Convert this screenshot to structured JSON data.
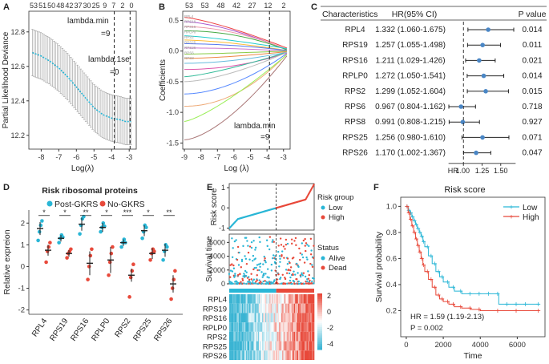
{
  "colors": {
    "cyan": "#29b6d6",
    "red": "#e8493a",
    "dot_blue": "#4a86c5",
    "grid_gray": "#9a9a9a",
    "heat_blue": "#3ab4d3",
    "heat_red": "#e8493a"
  },
  "chart_data": [
    {
      "panel": "A",
      "type": "line",
      "top_ticks": [
        "53",
        "51",
        "50",
        "48",
        "42",
        "37",
        "30",
        "25",
        "9",
        "7",
        "2",
        "0"
      ],
      "xticks": [
        "-8",
        "-7",
        "-6",
        "-5",
        "-4",
        "-3"
      ],
      "xlim": [
        -8.7,
        -2.6
      ],
      "yticks": [
        "12.2",
        "12.4",
        "12.6",
        "12.8"
      ],
      "ylim": [
        12.12,
        12.92
      ],
      "xlabel": "Log(λ)",
      "ylabel": "Partial Likelihood Deviance",
      "lambda_min_x": -3.85,
      "lambda_1se_x": -2.95,
      "annot_min": "lambda.min",
      "annot_min_val": "=9",
      "annot_1se": "lambda.1se",
      "annot_1se_val": "=0",
      "x": [
        -8.5,
        -8.0,
        -7.5,
        -7.0,
        -6.5,
        -6.0,
        -5.5,
        -5.0,
        -4.5,
        -4.0,
        -3.5,
        -3.2,
        -2.9
      ],
      "y": [
        12.68,
        12.66,
        12.63,
        12.59,
        12.54,
        12.48,
        12.42,
        12.36,
        12.32,
        12.3,
        12.29,
        12.28,
        12.28
      ],
      "err": [
        0.14,
        0.14,
        0.14,
        0.14,
        0.14,
        0.14,
        0.14,
        0.13,
        0.13,
        0.12,
        0.12,
        0.12,
        0.12
      ]
    },
    {
      "panel": "B",
      "type": "line",
      "top_ticks": [
        "53",
        "53",
        "48",
        "42",
        "27",
        "12",
        "2"
      ],
      "xticks": [
        "-9",
        "-8",
        "-7",
        "-6",
        "-5",
        "-4",
        "-3"
      ],
      "xlim": [
        -9.1,
        -2.6
      ],
      "yticks": [
        "-1.5",
        "-1.0",
        "-0.5",
        "0.0",
        "0.5"
      ],
      "ylim": [
        -1.6,
        0.65
      ],
      "xlabel": "Log (λ)",
      "ylabel": "Coefficients",
      "lambda_min_x": -3.85,
      "annot": "lambda.min",
      "annot_val": "=9",
      "path_labels": [
        "RPL4",
        "RPS19",
        "RPS16",
        "RPLP0",
        "RPS2",
        "RPS25",
        "RPS26",
        "RPS6",
        "RPS8"
      ],
      "paths": [
        {
          "start": 0.55,
          "end": 0.05,
          "color": "#e44"
        },
        {
          "start": 0.48,
          "end": 0.02,
          "color": "#a5c"
        },
        {
          "start": 0.4,
          "end": 0.03,
          "color": "#e9a"
        },
        {
          "start": 0.33,
          "end": 0.02,
          "color": "#4a4"
        },
        {
          "start": 0.25,
          "end": 0.04,
          "color": "#2cc"
        },
        {
          "start": 0.18,
          "end": 0.01,
          "color": "#fb3"
        },
        {
          "start": 0.12,
          "end": 0.01,
          "color": "#57e"
        },
        {
          "start": 0.05,
          "end": 0.0,
          "color": "#c7c"
        },
        {
          "start": -0.05,
          "end": 0.0,
          "color": "#8c4"
        },
        {
          "start": -0.12,
          "end": -0.01,
          "color": "#e84"
        },
        {
          "start": -0.2,
          "end": -0.02,
          "color": "#6bd"
        },
        {
          "start": -0.3,
          "end": -0.03,
          "color": "#d5a"
        },
        {
          "start": -0.42,
          "end": -0.02,
          "color": "#3b9"
        },
        {
          "start": -0.5,
          "end": -0.02,
          "color": "#bbb"
        },
        {
          "start": -0.7,
          "end": -0.04,
          "color": "#58f"
        },
        {
          "start": -0.9,
          "end": -0.05,
          "color": "#ea7"
        },
        {
          "start": -1.15,
          "end": -0.06,
          "color": "#9e5"
        },
        {
          "start": -1.45,
          "end": -0.08,
          "color": "#a77"
        }
      ]
    },
    {
      "panel": "C",
      "type": "forest",
      "header_char": "Characteristics",
      "header_hr": "HR(95% CI)",
      "header_p": "P value",
      "rows": [
        {
          "name": "RPL4",
          "ci": "1.332 (1.060-1.675)",
          "hr": 1.332,
          "lo": 1.06,
          "hi": 1.675,
          "p": "0.014"
        },
        {
          "name": "RPS19",
          "ci": "1.257 (1.055-1.498)",
          "hr": 1.257,
          "lo": 1.055,
          "hi": 1.498,
          "p": "0.011"
        },
        {
          "name": "RPS16",
          "ci": "1.211 (1.029-1.426)",
          "hr": 1.211,
          "lo": 1.029,
          "hi": 1.426,
          "p": "0.021"
        },
        {
          "name": "RPLP0",
          "ci": "1.272 (1.050-1.541)",
          "hr": 1.272,
          "lo": 1.05,
          "hi": 1.541,
          "p": "0.014"
        },
        {
          "name": "RPS2",
          "ci": "1.299 (1.052-1.604)",
          "hr": 1.299,
          "lo": 1.052,
          "hi": 1.604,
          "p": "0.015"
        },
        {
          "name": "RPS6",
          "ci": "0.967 (0.804-1.162)",
          "hr": 0.967,
          "lo": 0.804,
          "hi": 1.162,
          "p": "0.718"
        },
        {
          "name": "RPS8",
          "ci": "0.991 (0.808-1.215)",
          "hr": 0.991,
          "lo": 0.808,
          "hi": 1.215,
          "p": "0.927"
        },
        {
          "name": "RPS25",
          "ci": "1.256 (0.980-1.610)",
          "hr": 1.256,
          "lo": 0.98,
          "hi": 1.61,
          "p": "0.071"
        },
        {
          "name": "RPS26",
          "ci": "1.170 (1.002-1.367)",
          "hr": 1.17,
          "lo": 1.002,
          "hi": 1.367,
          "p": "0.047"
        }
      ],
      "axis_label": "HR",
      "ticks": [
        "1.00",
        "1.25",
        "1.50"
      ],
      "xlim": [
        0.75,
        1.75
      ]
    },
    {
      "panel": "D",
      "type": "scatter",
      "title": "Risk ribosomal proteins",
      "legend": [
        "Post-GKRS",
        "No-GKRS"
      ],
      "ylabel": "Relative expreion",
      "yticks": [
        "-2",
        "-1",
        "0",
        "1",
        "2"
      ],
      "ylim": [
        -2.2,
        2.6
      ],
      "categories": [
        "RPL4",
        "RPS19",
        "RPS16",
        "RPLP0",
        "RPS2",
        "RPS25",
        "RPS26"
      ],
      "sig": [
        "*",
        "*",
        "**",
        "*",
        "***",
        "*",
        "**"
      ],
      "post_mean": [
        1.75,
        1.3,
        1.95,
        1.8,
        1.1,
        1.65,
        0.75
      ],
      "post_sem": [
        0.3,
        0.15,
        0.3,
        0.2,
        0.15,
        0.25,
        0.3
      ],
      "post_points": [
        [
          1.2,
          1.6,
          1.9,
          2.1
        ],
        [
          1.1,
          1.3,
          1.45,
          1.35
        ],
        [
          1.5,
          1.9,
          2.2,
          2.3
        ],
        [
          1.6,
          1.8,
          2.0,
          1.85
        ],
        [
          0.9,
          1.1,
          1.25,
          1.1
        ],
        [
          1.3,
          1.6,
          1.9,
          1.8
        ],
        [
          0.3,
          0.7,
          1.0,
          0.9
        ]
      ],
      "no_mean": [
        0.75,
        0.6,
        0.15,
        0.3,
        -0.4,
        0.6,
        -0.8
      ],
      "no_sem": [
        0.25,
        0.15,
        0.55,
        0.6,
        0.3,
        0.25,
        0.4
      ],
      "no_points": [
        [
          0.2,
          0.7,
          0.9,
          1.1
        ],
        [
          0.4,
          0.6,
          0.7,
          0.8
        ],
        [
          -0.6,
          0.0,
          0.5,
          0.8
        ],
        [
          -0.4,
          0.2,
          0.6,
          0.9
        ],
        [
          -1.4,
          -0.5,
          -0.2,
          0.1
        ],
        [
          0.3,
          0.6,
          0.8,
          0.7
        ],
        [
          -1.5,
          -1.0,
          -0.6,
          -0.2
        ]
      ]
    },
    {
      "panel": "E",
      "type": "scatter",
      "risk_ylabel": "Risk score",
      "risk_yticks": [
        "1",
        "0",
        "-1"
      ],
      "risk_ylim": [
        -1.1,
        1.2
      ],
      "risk_legend_title": "Risk group",
      "risk_legend": [
        "Low",
        "High"
      ],
      "surv_ylabel": "Survival time",
      "surv_yticks": [
        "6000",
        "4000",
        "2000",
        "0"
      ],
      "surv_ylim": [
        0,
        7200
      ],
      "status_legend_title": "Status",
      "status_legend": [
        "Alive",
        "Dead"
      ],
      "n_patients": 160,
      "cutoff_fraction": 0.55,
      "heat_genes": [
        "RPL4",
        "RPS19",
        "RPS16",
        "RPLP0",
        "RPS2",
        "RPS25",
        "RPS26"
      ],
      "heat_ticks": [
        "2",
        "0",
        "-2",
        "-4"
      ]
    },
    {
      "panel": "F",
      "type": "line",
      "title": "Risk score",
      "legend": [
        "Low",
        "High"
      ],
      "xlabel": "Time",
      "ylabel": "Survival probability",
      "xticks": [
        "0",
        "2000",
        "4000",
        "6000"
      ],
      "xlim": [
        -300,
        7500
      ],
      "yticks": [
        "0.2",
        "0.4",
        "0.6",
        "0.8",
        "1.0"
      ],
      "ylim": [
        0.0,
        1.07
      ],
      "hr_text": "HR = 1.59 (1.19-2.13)",
      "p_text": "P = 0.002",
      "low_x": [
        0,
        100,
        200,
        300,
        400,
        500,
        600,
        700,
        800,
        900,
        1000,
        1200,
        1400,
        1600,
        1800,
        2000,
        2300,
        2600,
        3000,
        3500,
        4000,
        4500,
        5000,
        5500,
        6000,
        6500,
        7200
      ],
      "low_y": [
        1.0,
        0.97,
        0.95,
        0.92,
        0.89,
        0.86,
        0.83,
        0.8,
        0.77,
        0.73,
        0.69,
        0.62,
        0.56,
        0.5,
        0.46,
        0.42,
        0.38,
        0.35,
        0.33,
        0.33,
        0.33,
        0.33,
        0.25,
        0.25,
        0.25,
        0.25,
        0.25
      ],
      "high_x": [
        0,
        100,
        200,
        300,
        400,
        500,
        600,
        700,
        800,
        900,
        1000,
        1200,
        1400,
        1600,
        1800,
        2000,
        2300,
        2600,
        3000,
        3500,
        4000,
        5000,
        6000,
        7200
      ],
      "high_y": [
        1.0,
        0.95,
        0.9,
        0.85,
        0.8,
        0.75,
        0.7,
        0.65,
        0.6,
        0.55,
        0.5,
        0.44,
        0.38,
        0.32,
        0.29,
        0.27,
        0.25,
        0.23,
        0.22,
        0.21,
        0.2,
        0.2,
        0.2,
        0.2
      ]
    }
  ],
  "panels": {
    "A": "A",
    "B": "B",
    "C": "C",
    "D": "D",
    "E": "E",
    "F": "F"
  }
}
